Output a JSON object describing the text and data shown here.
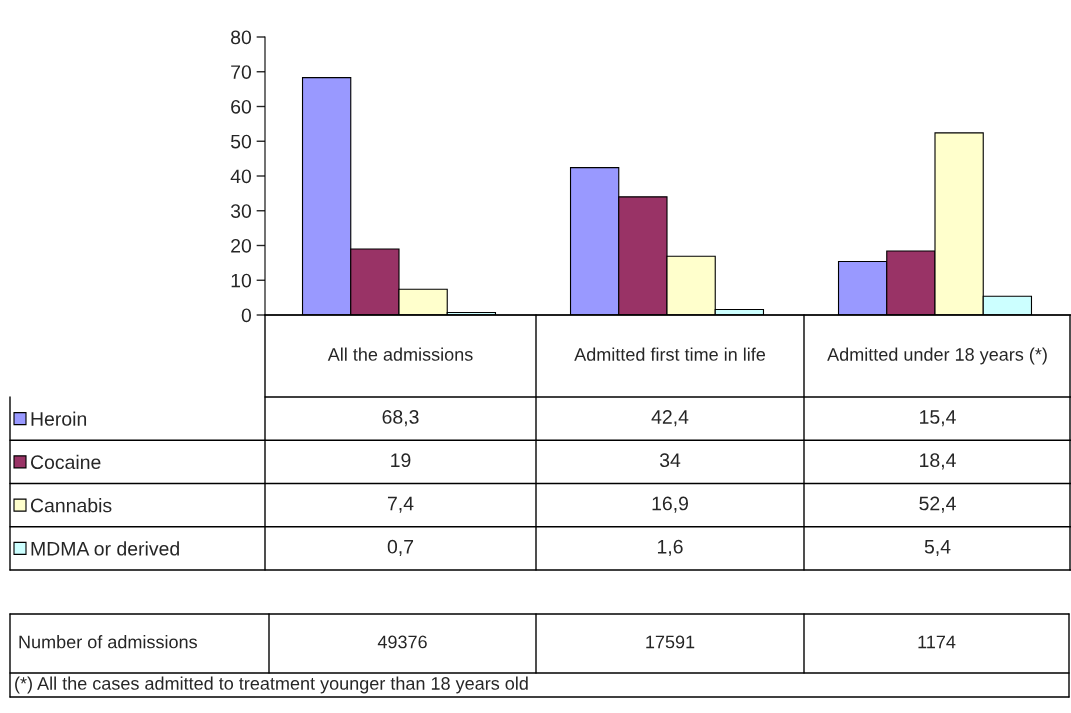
{
  "chart_data": {
    "type": "bar",
    "categories": [
      "All the admissions",
      "Admitted first time in life",
      "Admitted under 18 years (*)"
    ],
    "series": [
      {
        "name": "Heroin",
        "color": "#9999ff",
        "values": [
          68.3,
          42.4,
          15.4
        ],
        "value_labels": [
          "68,3",
          "42,4",
          "15,4"
        ]
      },
      {
        "name": "Cocaine",
        "color": "#993366",
        "values": [
          19,
          34,
          18.4
        ],
        "value_labels": [
          "19",
          "34",
          "18,4"
        ]
      },
      {
        "name": "Cannabis",
        "color": "#ffffcc",
        "values": [
          7.4,
          16.9,
          52.4
        ],
        "value_labels": [
          "7,4",
          "16,9",
          "52,4"
        ]
      },
      {
        "name": "MDMA or derived",
        "color": "#ccffff",
        "values": [
          0.7,
          1.6,
          5.4
        ],
        "value_labels": [
          "0,7",
          "1,6",
          "5,4"
        ]
      }
    ],
    "ylim": [
      0,
      80
    ],
    "yticks": [
      0,
      10,
      20,
      30,
      40,
      50,
      60,
      70,
      80
    ],
    "grid": false,
    "legend": "bottom",
    "annotations": [
      "Number of admissions",
      "49376",
      "17591",
      "1174",
      "(*) All the cases admitted to treatment younger than 18 years old"
    ]
  }
}
